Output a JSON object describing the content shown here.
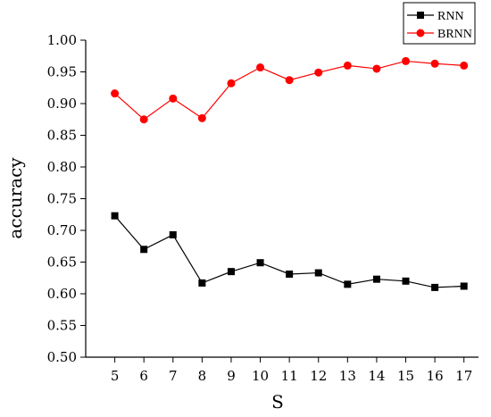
{
  "chart_data": {
    "type": "line",
    "title": "",
    "xlabel": "S",
    "ylabel": "accuracy",
    "categories": [
      "5",
      "6",
      "7",
      "8",
      "9",
      "10",
      "11",
      "12",
      "13",
      "14",
      "15",
      "16",
      "17"
    ],
    "x": [
      5,
      6,
      7,
      8,
      9,
      10,
      11,
      12,
      13,
      14,
      15,
      16,
      17
    ],
    "ylim": [
      0.5,
      1.0
    ],
    "yticks": [
      "0.50",
      "0.55",
      "0.60",
      "0.65",
      "0.70",
      "0.75",
      "0.80",
      "0.85",
      "0.90",
      "0.95",
      "1.00"
    ],
    "grid": false,
    "legend_position": "top-right",
    "series": [
      {
        "name": "RNN",
        "color": "#000000",
        "marker": "square",
        "values": [
          0.723,
          0.67,
          0.693,
          0.617,
          0.635,
          0.649,
          0.631,
          0.633,
          0.615,
          0.623,
          0.62,
          0.61,
          0.612
        ]
      },
      {
        "name": "BRNN",
        "color": "#ff0000",
        "marker": "circle",
        "values": [
          0.916,
          0.875,
          0.908,
          0.877,
          0.932,
          0.957,
          0.937,
          0.949,
          0.96,
          0.955,
          0.967,
          0.963,
          0.96
        ]
      }
    ]
  }
}
